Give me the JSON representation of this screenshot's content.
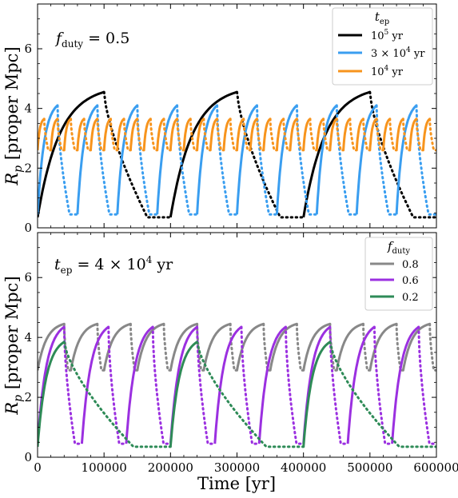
{
  "figure": {
    "xlabel": "Time [yr]"
  },
  "chart_data": [
    {
      "type": "line",
      "panel": "top",
      "ylabel_main": "R",
      "ylabel_sub": "p",
      "ylabel_rest": " [proper Mpc]",
      "annotation": {
        "main": "f",
        "sub": "duty",
        "rest": " = 0.5"
      },
      "legend": {
        "title_main": "t",
        "title_sub": "ep",
        "position": "top-right"
      },
      "xlim": [
        0,
        600000
      ],
      "ylim": [
        0,
        7.5
      ],
      "x_ticks": [
        0,
        100000,
        200000,
        300000,
        400000,
        500000,
        600000
      ],
      "x_tick_labels": [
        "0",
        "100000",
        "200000",
        "300000",
        "400000",
        "500000",
        "600000"
      ],
      "y_ticks": [
        0,
        2,
        4,
        6
      ],
      "y_tick_labels": [
        "0",
        "2",
        "4",
        "6"
      ],
      "grid": false,
      "series": [
        {
          "key": "s1",
          "label_parts": [
            "10",
            "5",
            " yr"
          ],
          "color": "#000000",
          "period": 200000,
          "on": 100000,
          "rmax": 4.55,
          "rmin": 0.35,
          "decay": 0.7
        },
        {
          "key": "s2",
          "label_parts": [
            "3 × 10",
            "4",
            " yr"
          ],
          "color": "#3a9ef0",
          "period": 60000,
          "on": 30000,
          "rmax": 4.1,
          "rmin": 0.45,
          "decay": 0.6
        },
        {
          "key": "s3",
          "label_parts": [
            "10",
            "4",
            " yr"
          ],
          "color": "#f7941d",
          "period": 20000,
          "on": 10000,
          "rmax": 3.65,
          "rmin": 2.6,
          "decay": 0.6
        }
      ]
    },
    {
      "type": "line",
      "panel": "bottom",
      "ylabel_main": "R",
      "ylabel_sub": "p",
      "ylabel_rest": " [proper Mpc]",
      "annotation": {
        "main": "t",
        "sub": "ep",
        "rest": " = 4 × 10",
        "sup": "4",
        "tail": " yr"
      },
      "legend": {
        "title_main": "f",
        "title_sub": "duty",
        "position": "top-right"
      },
      "xlim": [
        0,
        600000
      ],
      "ylim": [
        0,
        7.5
      ],
      "x_ticks": [
        0,
        100000,
        200000,
        300000,
        400000,
        500000,
        600000
      ],
      "x_tick_labels": [
        "0",
        "100000",
        "200000",
        "300000",
        "400000",
        "500000",
        "600000"
      ],
      "y_ticks": [
        0,
        2,
        4,
        6
      ],
      "y_tick_labels": [
        "0",
        "2",
        "4",
        "6"
      ],
      "grid": false,
      "series": [
        {
          "key": "d1",
          "label": "0.8",
          "color": "#888888",
          "period": 50000,
          "on": 40000,
          "rmax": 4.45,
          "rmin": 2.9,
          "decay": 0.6
        },
        {
          "key": "d2",
          "label": "0.6",
          "color": "#9b30e0",
          "period": 66667,
          "on": 40000,
          "rmax": 4.35,
          "rmin": 0.45,
          "decay": 0.6
        },
        {
          "key": "d3",
          "label": "0.2",
          "color": "#2e8b57",
          "period": 200000,
          "on": 40000,
          "rmax": 3.85,
          "rmin": 0.35,
          "decay": 0.7
        }
      ]
    }
  ]
}
